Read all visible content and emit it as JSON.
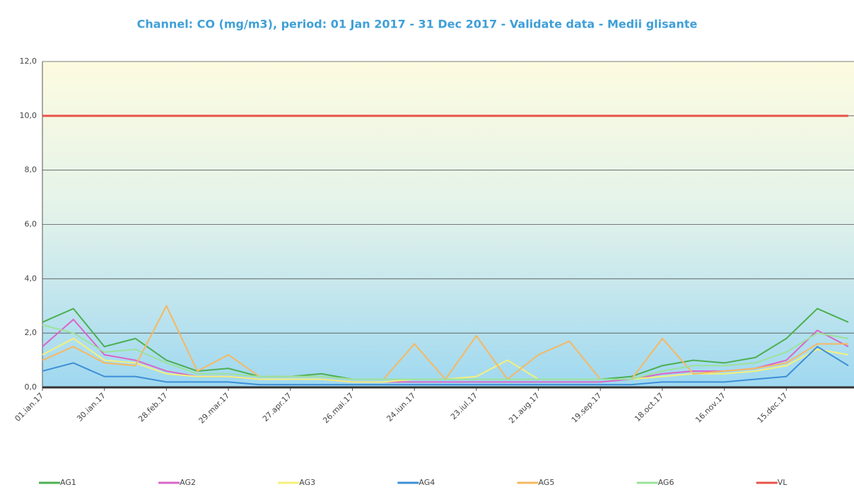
{
  "chart_data": {
    "type": "line",
    "title": "Channel: CO (mg/m3), period: 01 Jan 2017 - 31 Dec 2017 - Validate data - Medii glisante",
    "categories": [
      "01.ian.17",
      null,
      "30.ian.17",
      null,
      "28.feb.17",
      null,
      "29.mar.17",
      null,
      "27.apr.17",
      null,
      "26.mai.17",
      null,
      "24.iun.17",
      null,
      "23.iul.17",
      null,
      "21.aug.17",
      null,
      "19.sep.17",
      null,
      "18.oct.17",
      null,
      "16.nov.17",
      null,
      "15.dec.17",
      null,
      null
    ],
    "series": [
      {
        "name": "AG1",
        "color": "#4caf50",
        "values": [
          2.4,
          2.9,
          1.5,
          1.8,
          1.0,
          0.6,
          0.7,
          0.4,
          0.4,
          0.5,
          0.3,
          0.3,
          0.3,
          0.3,
          0.3,
          0.3,
          0.3,
          0.3,
          0.3,
          0.4,
          0.8,
          1.0,
          0.9,
          1.1,
          1.8,
          2.9,
          2.4
        ]
      },
      {
        "name": "AG2",
        "color": "#d966c8",
        "values": [
          1.5,
          2.5,
          1.2,
          1.0,
          0.6,
          0.4,
          0.4,
          0.3,
          0.3,
          0.3,
          0.2,
          0.2,
          0.2,
          0.2,
          0.2,
          0.2,
          0.2,
          0.2,
          0.2,
          0.3,
          0.5,
          0.6,
          0.6,
          0.7,
          1.0,
          2.1,
          1.5
        ]
      },
      {
        "name": "AG3",
        "color": "#f5f07a",
        "values": [
          1.2,
          1.8,
          1.0,
          0.9,
          0.5,
          0.4,
          0.4,
          0.3,
          0.3,
          0.3,
          0.2,
          0.2,
          0.3,
          0.3,
          0.4,
          1.0,
          0.3,
          0.3,
          0.3,
          0.3,
          0.4,
          0.5,
          0.5,
          0.6,
          0.8,
          1.4,
          1.2
        ]
      },
      {
        "name": "AG4",
        "color": "#3d8fd6",
        "values": [
          0.6,
          0.9,
          0.4,
          0.4,
          0.2,
          0.2,
          0.2,
          0.1,
          0.1,
          0.1,
          0.1,
          0.1,
          0.1,
          0.1,
          0.1,
          0.1,
          0.1,
          0.1,
          0.1,
          0.1,
          0.2,
          0.2,
          0.2,
          0.3,
          0.4,
          1.5,
          0.8
        ]
      },
      {
        "name": "AG5",
        "color": "#f6b860",
        "values": [
          1.0,
          1.5,
          0.9,
          0.8,
          3.0,
          0.6,
          1.2,
          0.4,
          0.4,
          0.4,
          0.3,
          0.3,
          1.6,
          0.3,
          1.9,
          0.3,
          1.2,
          1.7,
          0.3,
          0.3,
          1.8,
          0.5,
          0.6,
          0.7,
          0.9,
          1.6,
          1.6
        ]
      },
      {
        "name": "AG6",
        "color": "#9be29b",
        "values": [
          2.3,
          2.0,
          1.3,
          1.4,
          0.9,
          0.5,
          0.5,
          0.4,
          0.4,
          0.4,
          0.3,
          0.3,
          0.3,
          0.3,
          0.3,
          0.3,
          0.3,
          0.3,
          0.3,
          0.3,
          0.6,
          0.8,
          0.8,
          0.9,
          1.3,
          2.0,
          1.8
        ]
      },
      {
        "name": "VL",
        "color": "#e8524a",
        "values": [
          10,
          10,
          10,
          10,
          10,
          10,
          10,
          10,
          10,
          10,
          10,
          10,
          10,
          10,
          10,
          10,
          10,
          10,
          10,
          10,
          10,
          10,
          10,
          10,
          10,
          10,
          10
        ]
      }
    ],
    "ylim": [
      0,
      12
    ],
    "yticks": [
      {
        "value": 0,
        "label": "0,0"
      },
      {
        "value": 2,
        "label": "2,0"
      },
      {
        "value": 4,
        "label": "4,0"
      },
      {
        "value": 6,
        "label": "6,0"
      },
      {
        "value": 8,
        "label": "8,0"
      },
      {
        "value": 10,
        "label": "10,0"
      },
      {
        "value": 12,
        "label": "12,0"
      }
    ],
    "grid": true
  }
}
